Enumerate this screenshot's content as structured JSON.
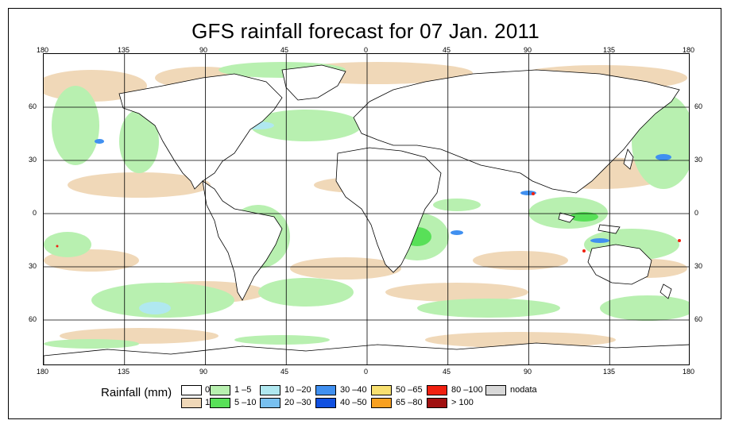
{
  "title": "GFS rainfall forecast for 07 Jan. 2011",
  "top_axis_ticks": [
    "180",
    "135",
    "90",
    "45",
    "0",
    "45",
    "90",
    "135",
    "180"
  ],
  "bottom_axis_ticks": [
    "180",
    "135",
    "90",
    "45",
    "0",
    "45",
    "90",
    "135",
    "180"
  ],
  "left_axis_ticks": [
    "60",
    "30",
    "0",
    "30",
    "60"
  ],
  "right_axis_ticks": [
    "60",
    "30",
    "0",
    "30",
    "60"
  ],
  "legend": {
    "title": "Rainfall (mm)",
    "items": [
      {
        "label": "0",
        "color": "#ffffff"
      },
      {
        "label": "1",
        "color": "#f0d8b8"
      },
      {
        "label": "1 –5",
        "color": "#b8f0b0"
      },
      {
        "label": "5 –10",
        "color": "#58e058"
      },
      {
        "label": "10 –20",
        "color": "#b0e8f0"
      },
      {
        "label": "20 –30",
        "color": "#78c0f0"
      },
      {
        "label": "30 –40",
        "color": "#4090f0"
      },
      {
        "label": "40 –50",
        "color": "#1050e0"
      },
      {
        "label": "50 –65",
        "color": "#f8e070"
      },
      {
        "label": "65 –80",
        "color": "#f8a020"
      },
      {
        "label": "80 –100",
        "color": "#f02010"
      },
      {
        "label": "> 100",
        "color": "#a01010"
      },
      {
        "label": "nodata",
        "color": "#d8d8d8"
      }
    ]
  }
}
